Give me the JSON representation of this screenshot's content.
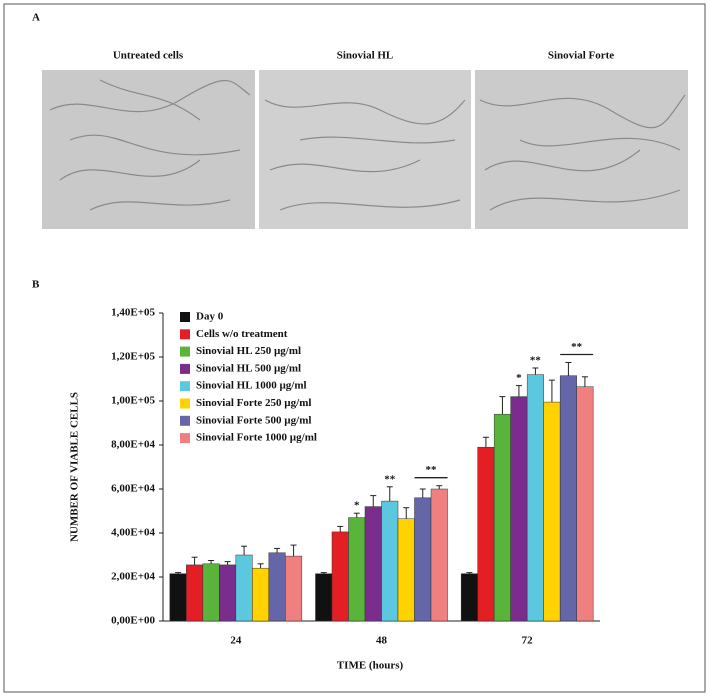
{
  "panel_a": {
    "label": "A",
    "titles": [
      "Untreated cells",
      "Sinovial HL",
      "Sinovial Forte"
    ]
  },
  "chart_data": {
    "type": "bar",
    "panel_label": "B",
    "x_label": "TIME (hours)",
    "y_label": "NUMBER OF VIABLE CELLS",
    "categories": [
      "24",
      "48",
      "72"
    ],
    "ylim": [
      0,
      140000
    ],
    "yticks": [
      {
        "value": 0,
        "label": "0,00E+00"
      },
      {
        "value": 20000,
        "label": "2,00E+04"
      },
      {
        "value": 40000,
        "label": "4,00E+04"
      },
      {
        "value": 60000,
        "label": "6,00E+04"
      },
      {
        "value": 80000,
        "label": "8,00E+04"
      },
      {
        "value": 100000,
        "label": "1,00E+05"
      },
      {
        "value": 120000,
        "label": "1,20E+05"
      },
      {
        "value": 140000,
        "label": "1,40E+05"
      }
    ],
    "series": [
      {
        "name": "Day 0",
        "color": "#111111",
        "values": [
          21500,
          21500,
          21500
        ],
        "errors": [
          500,
          500,
          500
        ]
      },
      {
        "name": "Cells w/o treatment",
        "color": "#e31e24",
        "values": [
          25500,
          40500,
          79000
        ],
        "errors": [
          3500,
          2500,
          4500
        ]
      },
      {
        "name": "Sinovial HL 250 µg/ml",
        "color": "#5ab43c",
        "values": [
          26000,
          47000,
          94000
        ],
        "errors": [
          1500,
          2000,
          8000
        ],
        "annotations": [
          null,
          "*",
          null
        ]
      },
      {
        "name": "Sinovial HL 500 µg/ml",
        "color": "#7b2d8e",
        "values": [
          25500,
          52000,
          102000
        ],
        "errors": [
          1500,
          5000,
          5000
        ],
        "annotations": [
          null,
          null,
          "*"
        ]
      },
      {
        "name": "Sinovial HL 1000 µg/ml",
        "color": "#5bc8e0",
        "values": [
          30000,
          54500,
          112000
        ],
        "errors": [
          4000,
          6500,
          3000
        ],
        "annotations": [
          null,
          "**",
          "**"
        ]
      },
      {
        "name": "Sinovial Forte 250 µg/ml",
        "color": "#ffd200",
        "values": [
          24000,
          46500,
          99500
        ],
        "errors": [
          2000,
          5000,
          10000
        ]
      },
      {
        "name": "Sinovial Forte 500 µg/ml",
        "color": "#6466a8",
        "values": [
          31000,
          56000,
          111500
        ],
        "errors": [
          2000,
          4000,
          6000
        ]
      },
      {
        "name": "Sinovial Forte 1000 µg/ml",
        "color": "#f08080",
        "values": [
          29500,
          60000,
          106500
        ],
        "errors": [
          5000,
          1500,
          4500
        ],
        "bracket_annotations": [
          null,
          "**",
          "**"
        ]
      }
    ]
  }
}
